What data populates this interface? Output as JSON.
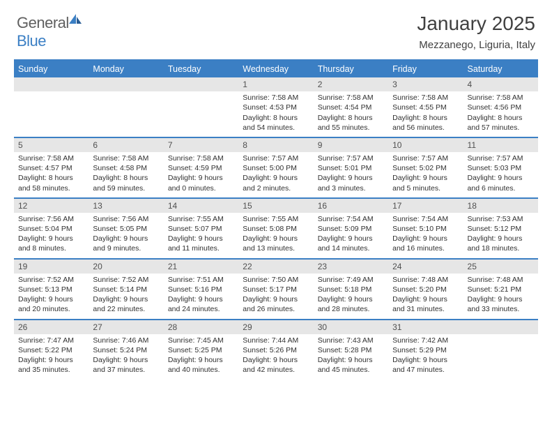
{
  "brand": {
    "text1": "General",
    "text2": "Blue"
  },
  "title": "January 2025",
  "location": "Mezzanego, Liguria, Italy",
  "colors": {
    "accent": "#3b7fc4",
    "text": "#404040",
    "header_row_bg": "#3b7fc4",
    "date_bar_bg": "#e6e6e6"
  },
  "weekdays": [
    "Sunday",
    "Monday",
    "Tuesday",
    "Wednesday",
    "Thursday",
    "Friday",
    "Saturday"
  ],
  "weeks": [
    [
      {
        "date": "",
        "sunrise": "",
        "sunset": "",
        "daylight1": "",
        "daylight2": ""
      },
      {
        "date": "",
        "sunrise": "",
        "sunset": "",
        "daylight1": "",
        "daylight2": ""
      },
      {
        "date": "",
        "sunrise": "",
        "sunset": "",
        "daylight1": "",
        "daylight2": ""
      },
      {
        "date": "1",
        "sunrise": "Sunrise: 7:58 AM",
        "sunset": "Sunset: 4:53 PM",
        "daylight1": "Daylight: 8 hours",
        "daylight2": "and 54 minutes."
      },
      {
        "date": "2",
        "sunrise": "Sunrise: 7:58 AM",
        "sunset": "Sunset: 4:54 PM",
        "daylight1": "Daylight: 8 hours",
        "daylight2": "and 55 minutes."
      },
      {
        "date": "3",
        "sunrise": "Sunrise: 7:58 AM",
        "sunset": "Sunset: 4:55 PM",
        "daylight1": "Daylight: 8 hours",
        "daylight2": "and 56 minutes."
      },
      {
        "date": "4",
        "sunrise": "Sunrise: 7:58 AM",
        "sunset": "Sunset: 4:56 PM",
        "daylight1": "Daylight: 8 hours",
        "daylight2": "and 57 minutes."
      }
    ],
    [
      {
        "date": "5",
        "sunrise": "Sunrise: 7:58 AM",
        "sunset": "Sunset: 4:57 PM",
        "daylight1": "Daylight: 8 hours",
        "daylight2": "and 58 minutes."
      },
      {
        "date": "6",
        "sunrise": "Sunrise: 7:58 AM",
        "sunset": "Sunset: 4:58 PM",
        "daylight1": "Daylight: 8 hours",
        "daylight2": "and 59 minutes."
      },
      {
        "date": "7",
        "sunrise": "Sunrise: 7:58 AM",
        "sunset": "Sunset: 4:59 PM",
        "daylight1": "Daylight: 9 hours",
        "daylight2": "and 0 minutes."
      },
      {
        "date": "8",
        "sunrise": "Sunrise: 7:57 AM",
        "sunset": "Sunset: 5:00 PM",
        "daylight1": "Daylight: 9 hours",
        "daylight2": "and 2 minutes."
      },
      {
        "date": "9",
        "sunrise": "Sunrise: 7:57 AM",
        "sunset": "Sunset: 5:01 PM",
        "daylight1": "Daylight: 9 hours",
        "daylight2": "and 3 minutes."
      },
      {
        "date": "10",
        "sunrise": "Sunrise: 7:57 AM",
        "sunset": "Sunset: 5:02 PM",
        "daylight1": "Daylight: 9 hours",
        "daylight2": "and 5 minutes."
      },
      {
        "date": "11",
        "sunrise": "Sunrise: 7:57 AM",
        "sunset": "Sunset: 5:03 PM",
        "daylight1": "Daylight: 9 hours",
        "daylight2": "and 6 minutes."
      }
    ],
    [
      {
        "date": "12",
        "sunrise": "Sunrise: 7:56 AM",
        "sunset": "Sunset: 5:04 PM",
        "daylight1": "Daylight: 9 hours",
        "daylight2": "and 8 minutes."
      },
      {
        "date": "13",
        "sunrise": "Sunrise: 7:56 AM",
        "sunset": "Sunset: 5:05 PM",
        "daylight1": "Daylight: 9 hours",
        "daylight2": "and 9 minutes."
      },
      {
        "date": "14",
        "sunrise": "Sunrise: 7:55 AM",
        "sunset": "Sunset: 5:07 PM",
        "daylight1": "Daylight: 9 hours",
        "daylight2": "and 11 minutes."
      },
      {
        "date": "15",
        "sunrise": "Sunrise: 7:55 AM",
        "sunset": "Sunset: 5:08 PM",
        "daylight1": "Daylight: 9 hours",
        "daylight2": "and 13 minutes."
      },
      {
        "date": "16",
        "sunrise": "Sunrise: 7:54 AM",
        "sunset": "Sunset: 5:09 PM",
        "daylight1": "Daylight: 9 hours",
        "daylight2": "and 14 minutes."
      },
      {
        "date": "17",
        "sunrise": "Sunrise: 7:54 AM",
        "sunset": "Sunset: 5:10 PM",
        "daylight1": "Daylight: 9 hours",
        "daylight2": "and 16 minutes."
      },
      {
        "date": "18",
        "sunrise": "Sunrise: 7:53 AM",
        "sunset": "Sunset: 5:12 PM",
        "daylight1": "Daylight: 9 hours",
        "daylight2": "and 18 minutes."
      }
    ],
    [
      {
        "date": "19",
        "sunrise": "Sunrise: 7:52 AM",
        "sunset": "Sunset: 5:13 PM",
        "daylight1": "Daylight: 9 hours",
        "daylight2": "and 20 minutes."
      },
      {
        "date": "20",
        "sunrise": "Sunrise: 7:52 AM",
        "sunset": "Sunset: 5:14 PM",
        "daylight1": "Daylight: 9 hours",
        "daylight2": "and 22 minutes."
      },
      {
        "date": "21",
        "sunrise": "Sunrise: 7:51 AM",
        "sunset": "Sunset: 5:16 PM",
        "daylight1": "Daylight: 9 hours",
        "daylight2": "and 24 minutes."
      },
      {
        "date": "22",
        "sunrise": "Sunrise: 7:50 AM",
        "sunset": "Sunset: 5:17 PM",
        "daylight1": "Daylight: 9 hours",
        "daylight2": "and 26 minutes."
      },
      {
        "date": "23",
        "sunrise": "Sunrise: 7:49 AM",
        "sunset": "Sunset: 5:18 PM",
        "daylight1": "Daylight: 9 hours",
        "daylight2": "and 28 minutes."
      },
      {
        "date": "24",
        "sunrise": "Sunrise: 7:48 AM",
        "sunset": "Sunset: 5:20 PM",
        "daylight1": "Daylight: 9 hours",
        "daylight2": "and 31 minutes."
      },
      {
        "date": "25",
        "sunrise": "Sunrise: 7:48 AM",
        "sunset": "Sunset: 5:21 PM",
        "daylight1": "Daylight: 9 hours",
        "daylight2": "and 33 minutes."
      }
    ],
    [
      {
        "date": "26",
        "sunrise": "Sunrise: 7:47 AM",
        "sunset": "Sunset: 5:22 PM",
        "daylight1": "Daylight: 9 hours",
        "daylight2": "and 35 minutes."
      },
      {
        "date": "27",
        "sunrise": "Sunrise: 7:46 AM",
        "sunset": "Sunset: 5:24 PM",
        "daylight1": "Daylight: 9 hours",
        "daylight2": "and 37 minutes."
      },
      {
        "date": "28",
        "sunrise": "Sunrise: 7:45 AM",
        "sunset": "Sunset: 5:25 PM",
        "daylight1": "Daylight: 9 hours",
        "daylight2": "and 40 minutes."
      },
      {
        "date": "29",
        "sunrise": "Sunrise: 7:44 AM",
        "sunset": "Sunset: 5:26 PM",
        "daylight1": "Daylight: 9 hours",
        "daylight2": "and 42 minutes."
      },
      {
        "date": "30",
        "sunrise": "Sunrise: 7:43 AM",
        "sunset": "Sunset: 5:28 PM",
        "daylight1": "Daylight: 9 hours",
        "daylight2": "and 45 minutes."
      },
      {
        "date": "31",
        "sunrise": "Sunrise: 7:42 AM",
        "sunset": "Sunset: 5:29 PM",
        "daylight1": "Daylight: 9 hours",
        "daylight2": "and 47 minutes."
      },
      {
        "date": "",
        "sunrise": "",
        "sunset": "",
        "daylight1": "",
        "daylight2": ""
      }
    ]
  ]
}
